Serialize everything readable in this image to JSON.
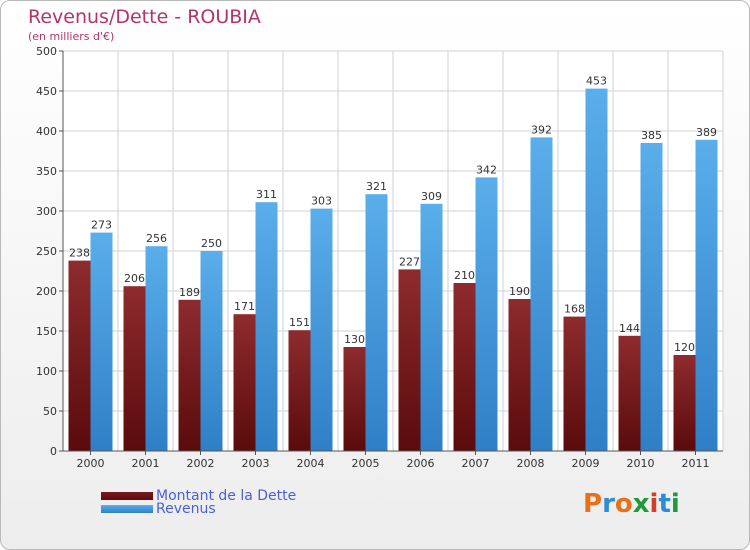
{
  "chart_data": {
    "type": "bar",
    "title": "Revenus/Dette - ROUBIA",
    "subtitle": "(en milliers d'€)",
    "categories": [
      "2000",
      "2001",
      "2002",
      "2003",
      "2004",
      "2005",
      "2006",
      "2007",
      "2008",
      "2009",
      "2010",
      "2011"
    ],
    "series": [
      {
        "name": "Montant de la Dette",
        "color": "#7a1a1c",
        "values": [
          238,
          206,
          189,
          171,
          151,
          130,
          227,
          210,
          190,
          168,
          144,
          120
        ]
      },
      {
        "name": "Revenus",
        "color": "#4da3e8",
        "values": [
          273,
          256,
          250,
          311,
          303,
          321,
          309,
          342,
          392,
          453,
          385,
          389
        ]
      }
    ],
    "ylim": [
      0,
      500
    ],
    "yticks": [
      0,
      50,
      100,
      150,
      200,
      250,
      300,
      350,
      400,
      450,
      500
    ],
    "grid": true,
    "legend_position": "bottom-left"
  },
  "logo": {
    "text": "Proxiti",
    "colors": [
      "#e8701a",
      "#2e8cd6",
      "#e8701a",
      "#1f9a3a",
      "#d43c2c",
      "#2e8cd6",
      "#1f9a3a"
    ]
  }
}
